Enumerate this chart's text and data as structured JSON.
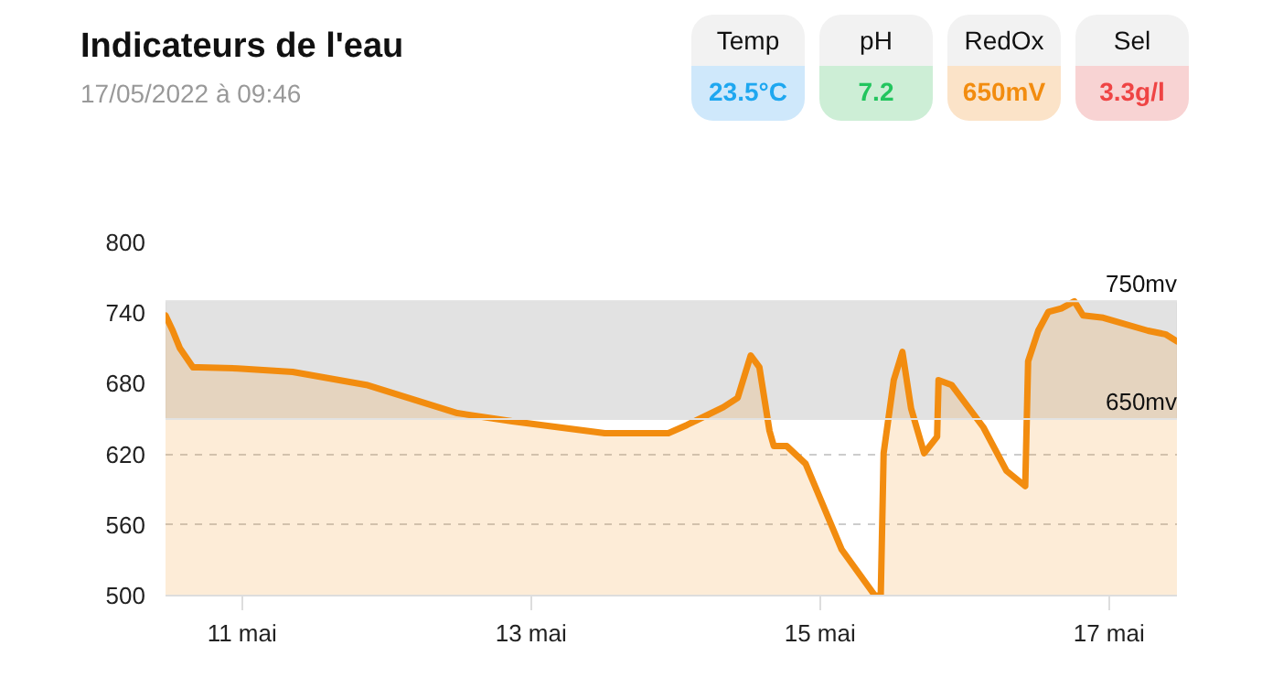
{
  "chart_data": {
    "type": "area",
    "title": "Indicateurs de l'eau",
    "subtitle": "17/05/2022 à 09:46",
    "annotations": [
      "Temp",
      "23.5°C",
      "pH",
      "7.2",
      "RedOx",
      "650mV",
      "Sel",
      "3.3g/l"
    ],
    "x": [
      10.47,
      10.52,
      10.57,
      10.66,
      10.7,
      10.97,
      11.35,
      11.86,
      12.49,
      12.87,
      13.51,
      13.95,
      14.08,
      14.33,
      14.43,
      14.52,
      14.58,
      14.65,
      14.68,
      14.77,
      14.9,
      15.15,
      15.38,
      15.42,
      15.44,
      15.51,
      15.57,
      15.63,
      15.72,
      15.81,
      15.82,
      15.91,
      16.13,
      16.29,
      16.42,
      16.44,
      16.51,
      16.58,
      16.67,
      16.76,
      16.82,
      16.96,
      17.27,
      17.39,
      17.47
    ],
    "series": [
      {
        "color": "#f28c0f",
        "values": [
          738,
          725,
          710,
          694,
          694,
          693,
          690,
          679,
          655,
          648,
          638,
          638,
          645,
          660,
          668,
          704,
          694,
          640,
          627,
          627,
          612,
          539,
          500,
          500,
          621,
          683,
          707,
          659,
          621,
          635,
          683,
          679,
          643,
          606,
          593,
          699,
          725,
          741,
          744,
          750,
          738,
          736,
          725,
          722,
          716
        ]
      }
    ],
    "xlim": [
      10.47,
      17.47
    ],
    "xticks": [
      {
        "value": 11,
        "label": "11 mai"
      },
      {
        "value": 13,
        "label": "13 mai"
      },
      {
        "value": 15,
        "label": "15 mai"
      },
      {
        "value": 17,
        "label": "17 mai"
      }
    ],
    "ylim": [
      500,
      800
    ],
    "yticks": [
      500,
      560,
      620,
      680,
      740,
      800
    ],
    "grid": "y",
    "bands": [
      {
        "axis": "y",
        "from": 650,
        "to": 750,
        "color": "#e2e2e2"
      }
    ],
    "ref_lines": [
      {
        "axis": "y",
        "value": 750,
        "label": "750mv",
        "color": "#e2e2e2"
      },
      {
        "axis": "y",
        "value": 650,
        "label": "650mv",
        "color": "#e2e2e2"
      }
    ]
  }
}
